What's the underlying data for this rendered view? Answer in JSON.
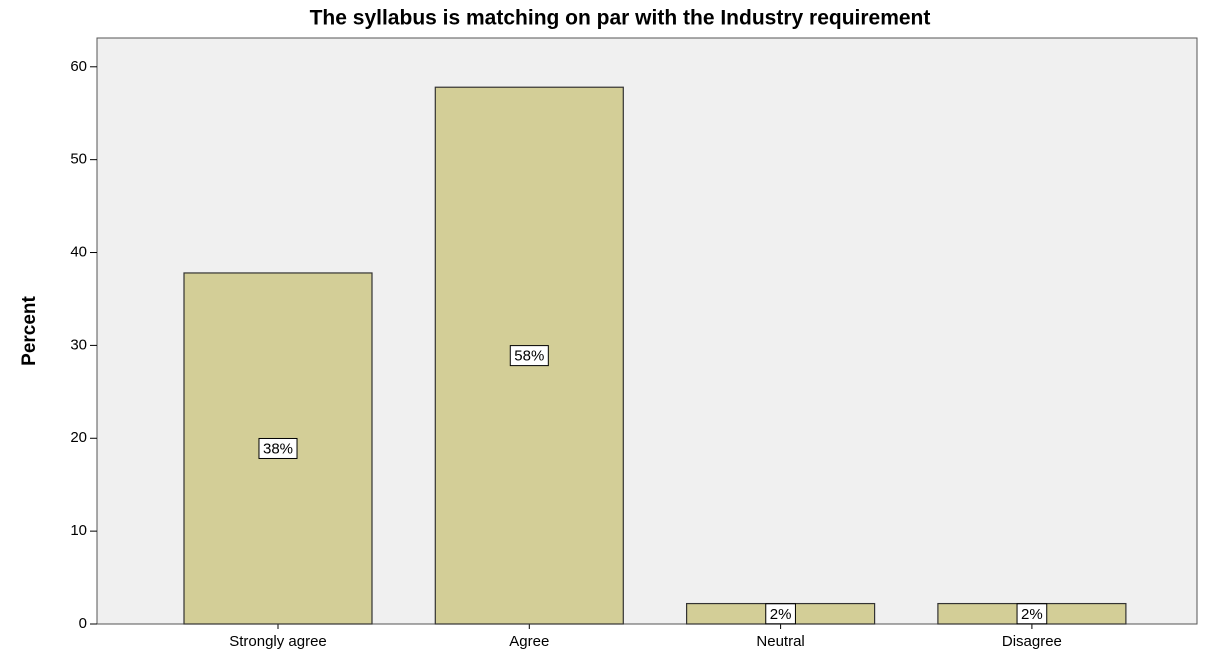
{
  "chart_data": {
    "type": "bar",
    "title": "The syllabus is matching on par with the Industry requirement",
    "ylabel": "Percent",
    "categories": [
      "Strongly agree",
      "Agree",
      "Neutral",
      "Disagree"
    ],
    "values": [
      37.8,
      57.8,
      2.2,
      2.2
    ],
    "value_labels": [
      "38%",
      "58%",
      "2%",
      "2%"
    ],
    "color": "#d3ce97",
    "ylim": [
      0,
      63.1
    ],
    "yticks": [
      0,
      10,
      20,
      30,
      40,
      50,
      60
    ],
    "grid": false
  }
}
